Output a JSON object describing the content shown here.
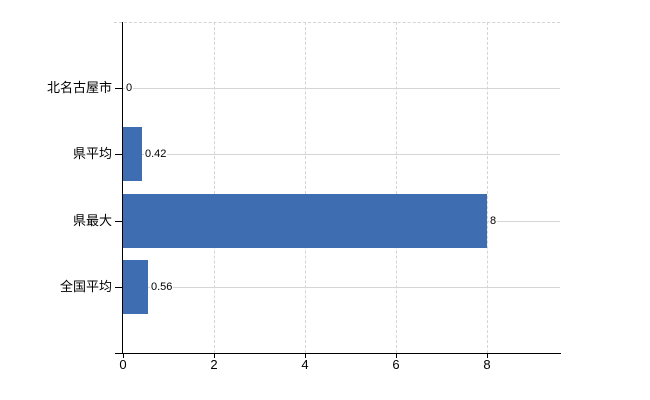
{
  "chart_data": {
    "type": "bar",
    "orientation": "horizontal",
    "title": "",
    "categories": [
      "北名古屋市",
      "県平均",
      "県最大",
      "全国平均"
    ],
    "values": [
      0,
      0.42,
      8,
      0.56
    ],
    "value_labels": [
      "0",
      "0.42",
      "8",
      "0.56"
    ],
    "x_tick_values": [
      0,
      2,
      4,
      6,
      8
    ],
    "x_tick_labels": [
      "0",
      "2",
      "4",
      "6",
      "8"
    ],
    "xlim": [
      0,
      9.63
    ],
    "grid": true,
    "legend": false,
    "colors": {
      "bar": "#3e6db2",
      "vertical_grid": "#d4d4d4",
      "horizontal_grid": "#d2d7d2",
      "axis": "#000000",
      "text": "#000000",
      "background": "#ffffff"
    }
  }
}
